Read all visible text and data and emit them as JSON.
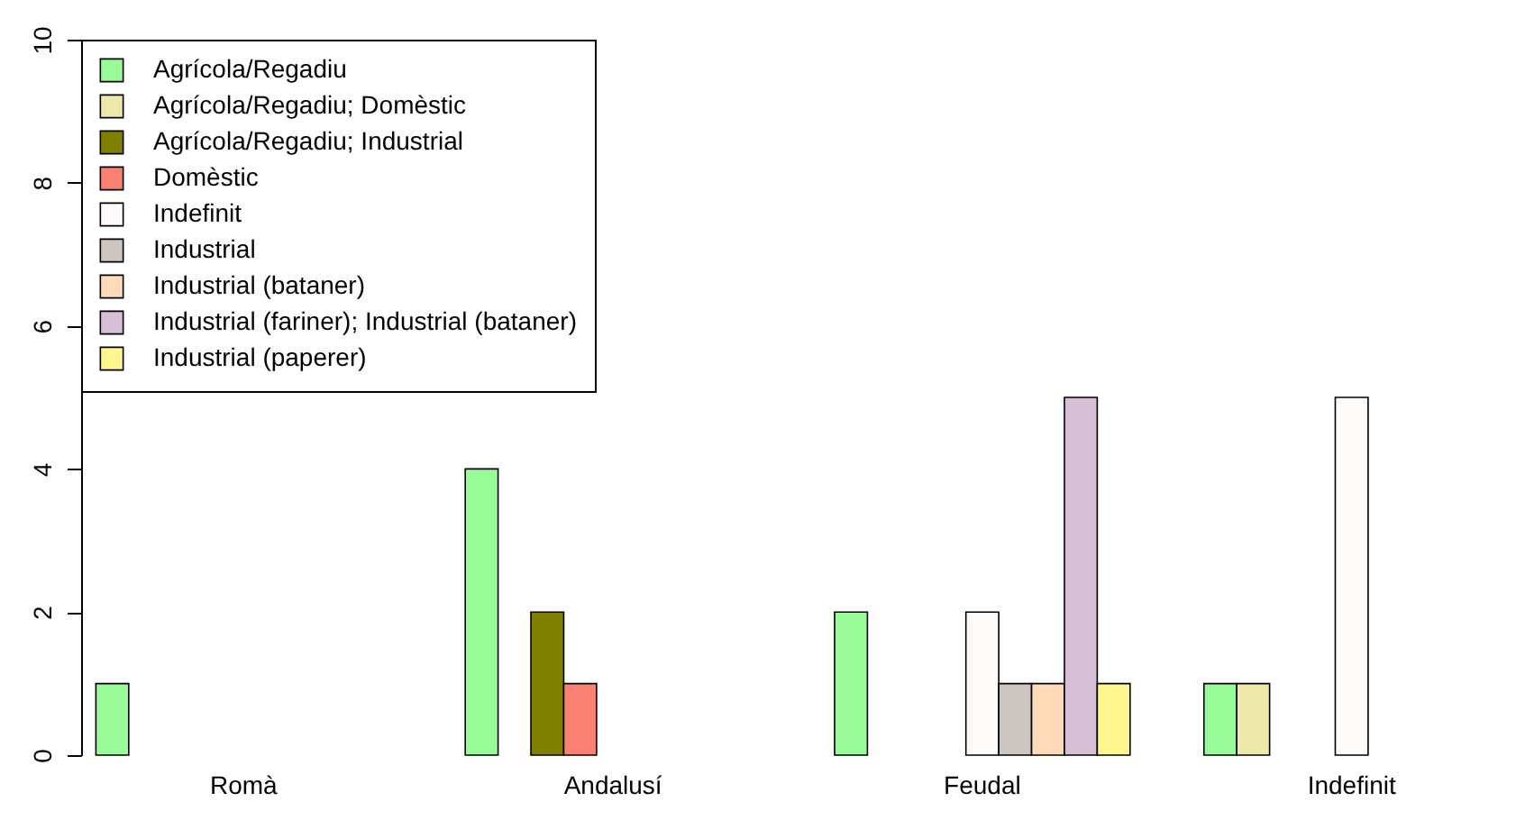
{
  "chart_data": {
    "type": "bar",
    "categories": [
      "Romà",
      "Andalusí",
      "Feudal",
      "Indefinit"
    ],
    "series": [
      {
        "name": "Agrícola/Regadiu",
        "color": "#98fb98",
        "values": [
          1,
          4,
          2,
          1
        ]
      },
      {
        "name": "Agrícola/Regadiu; Domèstic",
        "color": "#eee8aa",
        "values": [
          0,
          0,
          0,
          1
        ]
      },
      {
        "name": "Agrícola/Regadiu; Industrial",
        "color": "#808000",
        "values": [
          0,
          2,
          0,
          0
        ]
      },
      {
        "name": "Domèstic",
        "color": "#fa8072",
        "values": [
          0,
          1,
          0,
          0
        ]
      },
      {
        "name": "Indefinit",
        "color": "#fffafa",
        "values": [
          0,
          0,
          2,
          5
        ]
      },
      {
        "name": "Industrial",
        "color": "#cdc5bf",
        "values": [
          0,
          0,
          1,
          0
        ]
      },
      {
        "name": "Industrial (bataner)",
        "color": "#ffdab9",
        "values": [
          0,
          0,
          1,
          0
        ]
      },
      {
        "name": "Industrial (fariner); Industrial (bataner)",
        "color": "#d8bfd8",
        "values": [
          0,
          0,
          5,
          0
        ]
      },
      {
        "name": "Industrial (paperer)",
        "color": "#fff68f",
        "values": [
          0,
          0,
          1,
          0
        ]
      }
    ],
    "ylim": [
      0,
      10
    ],
    "yticks": [
      0,
      2,
      4,
      6,
      8,
      10
    ],
    "grid": false,
    "legend": "top left"
  }
}
